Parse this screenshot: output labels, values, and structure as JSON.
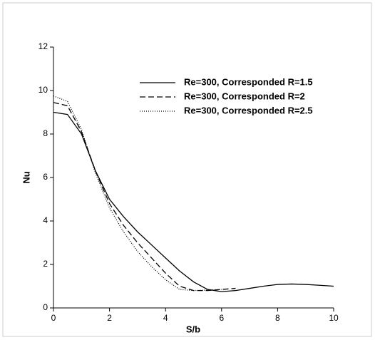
{
  "chart_data": {
    "type": "line",
    "x_label": "S/b",
    "y_label": "Nu",
    "xlim": [
      0,
      10
    ],
    "ylim": [
      0,
      12
    ],
    "xticks": [
      0,
      2,
      4,
      6,
      8,
      10
    ],
    "yticks": [
      0,
      2,
      4,
      6,
      8,
      10,
      12
    ],
    "legend": "top-right",
    "series": [
      {
        "name": "Re=300, Corresponded R=1.5",
        "color": "#000000",
        "dash": "solid",
        "x": [
          0,
          0.5,
          1,
          1.5,
          2,
          2.5,
          3,
          3.5,
          4,
          4.5,
          5,
          5.5,
          6,
          6.5,
          7,
          7.5,
          8,
          8.5,
          9,
          9.5,
          10
        ],
        "values": [
          9.0,
          8.9,
          8.0,
          6.3,
          5.0,
          4.2,
          3.5,
          2.9,
          2.3,
          1.7,
          1.2,
          0.85,
          0.75,
          0.8,
          0.9,
          1.0,
          1.08,
          1.1,
          1.08,
          1.04,
          1.0
        ]
      },
      {
        "name": "Re=300, Corresponded R=2",
        "color": "#000000",
        "dash": "dashed",
        "x": [
          0,
          0.5,
          1,
          1.5,
          2,
          2.5,
          3,
          3.5,
          4,
          4.5,
          5,
          5.5,
          6,
          6.5
        ],
        "values": [
          9.45,
          9.3,
          8.1,
          6.3,
          4.8,
          3.8,
          3.0,
          2.3,
          1.6,
          1.0,
          0.8,
          0.8,
          0.85,
          0.9
        ]
      },
      {
        "name": "Re=300, Corresponded R=2.5",
        "color": "#000000",
        "dash": "dotted",
        "x": [
          0,
          0.5,
          1,
          1.5,
          2,
          2.5,
          3,
          3.5,
          4,
          4.5,
          5,
          5.5,
          6
        ],
        "values": [
          9.75,
          9.5,
          8.2,
          6.2,
          4.6,
          3.5,
          2.6,
          1.9,
          1.3,
          0.85,
          0.8,
          0.82,
          0.85
        ]
      }
    ]
  }
}
